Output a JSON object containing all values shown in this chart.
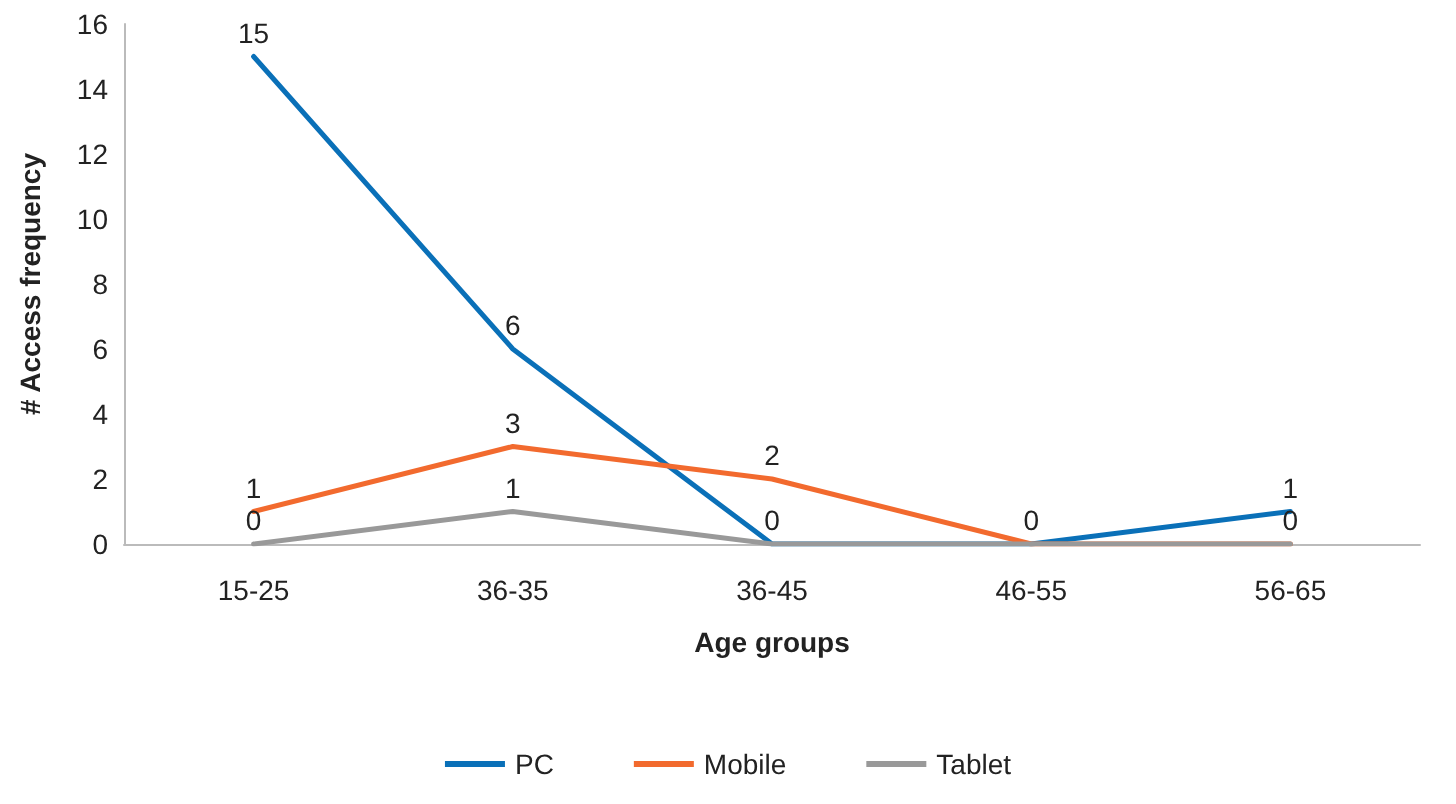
{
  "chart_data": {
    "type": "line",
    "xlabel": "Age groups",
    "ylabel": "# Access frequency",
    "categories": [
      "15-25",
      "36-35",
      "36-45",
      "46-55",
      "56-65"
    ],
    "series": [
      {
        "name": "PC",
        "color": "#0a70b8",
        "values": [
          15,
          6,
          0,
          0,
          1
        ],
        "value_labels": [
          "15",
          "6",
          null,
          null,
          "1"
        ]
      },
      {
        "name": "Mobile",
        "color": "#f26a2e",
        "values": [
          1,
          3,
          2,
          0,
          0
        ],
        "value_labels": [
          "1",
          "3",
          "2",
          "0",
          null
        ]
      },
      {
        "name": "Tablet",
        "color": "#999999",
        "values": [
          0,
          1,
          0,
          0,
          0
        ],
        "value_labels": [
          "0",
          "1",
          "0",
          null,
          "0"
        ]
      }
    ],
    "ylim": [
      0,
      16
    ],
    "yticks": [
      0,
      2,
      4,
      6,
      8,
      10,
      12,
      14,
      16
    ],
    "grid": false,
    "legend": "bottom",
    "marker": "none",
    "line_style": "solid"
  }
}
